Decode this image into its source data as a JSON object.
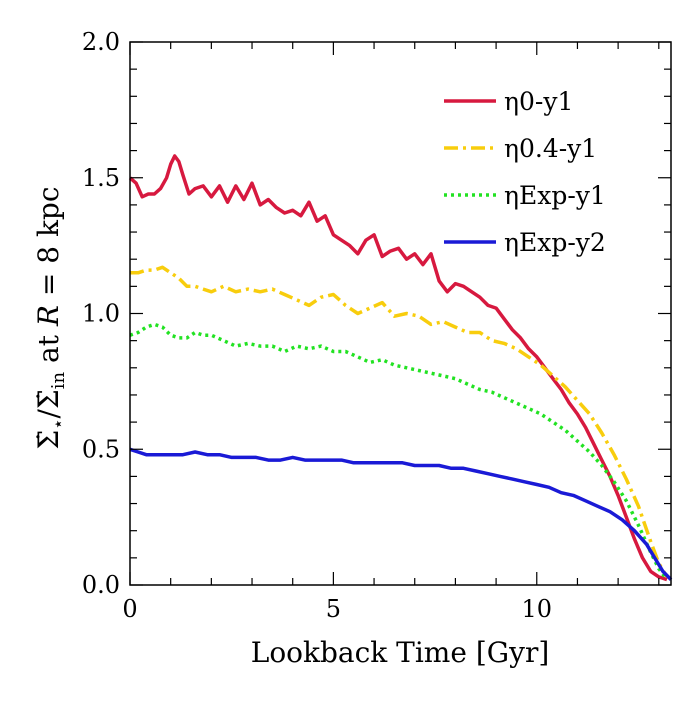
{
  "chart_data": {
    "type": "line",
    "title": "",
    "xlabel": "Lookback Time [Gyr]",
    "ylabel": "Σ̇⋆/Σ̇in at R = 8 kpc",
    "ylabel_parts": {
      "main": "Σ̇",
      "star_sub": "⋆",
      "slash": "/Σ̇",
      "in_sub": "in",
      "at_text": " at ",
      "r_var": "R",
      "rest": " = 8 kpc"
    },
    "xlim": [
      0,
      13.3
    ],
    "ylim": [
      0,
      2.0
    ],
    "xticks": [
      0,
      5,
      10
    ],
    "xtick_labels": [
      "0",
      "5",
      "10"
    ],
    "yticks": [
      0,
      0.5,
      1.0,
      1.5,
      2.0
    ],
    "ytick_labels": [
      "0.0",
      "0.5",
      "1.0",
      "1.5",
      "2.0"
    ],
    "x_minor_step": 1,
    "y_minor_step": 0.1,
    "grid": false,
    "legend_position": "top-right",
    "series": [
      {
        "name": "η0-y1",
        "color": "#d7193f",
        "dash": "solid",
        "x": [
          0,
          0.15,
          0.3,
          0.45,
          0.6,
          0.75,
          0.9,
          1.0,
          1.1,
          1.2,
          1.3,
          1.45,
          1.6,
          1.8,
          2.0,
          2.2,
          2.4,
          2.6,
          2.8,
          3.0,
          3.2,
          3.4,
          3.6,
          3.8,
          4.0,
          4.2,
          4.4,
          4.6,
          4.8,
          5.0,
          5.2,
          5.4,
          5.6,
          5.8,
          6.0,
          6.2,
          6.4,
          6.6,
          6.8,
          7.0,
          7.2,
          7.4,
          7.6,
          7.8,
          8.0,
          8.2,
          8.4,
          8.6,
          8.8,
          9.0,
          9.2,
          9.4,
          9.6,
          9.8,
          10.0,
          10.2,
          10.4,
          10.6,
          10.8,
          11.0,
          11.2,
          11.4,
          11.6,
          11.8,
          12.0,
          12.2,
          12.4,
          12.6,
          12.8,
          13.0,
          13.2
        ],
        "y": [
          1.5,
          1.48,
          1.43,
          1.44,
          1.44,
          1.46,
          1.5,
          1.55,
          1.58,
          1.56,
          1.51,
          1.44,
          1.46,
          1.47,
          1.43,
          1.47,
          1.41,
          1.47,
          1.42,
          1.48,
          1.4,
          1.42,
          1.39,
          1.37,
          1.38,
          1.36,
          1.41,
          1.34,
          1.36,
          1.29,
          1.27,
          1.25,
          1.22,
          1.27,
          1.29,
          1.21,
          1.23,
          1.24,
          1.2,
          1.22,
          1.18,
          1.22,
          1.12,
          1.08,
          1.11,
          1.1,
          1.08,
          1.06,
          1.03,
          1.02,
          0.98,
          0.94,
          0.91,
          0.87,
          0.84,
          0.8,
          0.76,
          0.72,
          0.67,
          0.63,
          0.58,
          0.52,
          0.46,
          0.4,
          0.33,
          0.25,
          0.17,
          0.1,
          0.05,
          0.03,
          0.02
        ]
      },
      {
        "name": "η0.4-y1",
        "color": "#f8cd0d",
        "dash": "dashdot",
        "x": [
          0,
          0.2,
          0.4,
          0.6,
          0.8,
          1.0,
          1.2,
          1.4,
          1.6,
          1.8,
          2.0,
          2.3,
          2.6,
          2.9,
          3.2,
          3.5,
          3.8,
          4.1,
          4.4,
          4.7,
          5.0,
          5.3,
          5.6,
          5.9,
          6.2,
          6.5,
          6.8,
          7.1,
          7.4,
          7.7,
          8.0,
          8.3,
          8.6,
          8.9,
          9.2,
          9.5,
          9.8,
          10.1,
          10.4,
          10.7,
          11.0,
          11.3,
          11.6,
          11.9,
          12.2,
          12.5,
          12.8,
          13.0,
          13.2
        ],
        "y": [
          1.15,
          1.15,
          1.16,
          1.16,
          1.17,
          1.15,
          1.13,
          1.1,
          1.1,
          1.09,
          1.08,
          1.1,
          1.08,
          1.09,
          1.08,
          1.09,
          1.07,
          1.05,
          1.03,
          1.06,
          1.07,
          1.03,
          1.0,
          1.02,
          1.04,
          0.99,
          1.0,
          0.99,
          0.96,
          0.97,
          0.95,
          0.93,
          0.93,
          0.9,
          0.89,
          0.87,
          0.84,
          0.81,
          0.77,
          0.73,
          0.68,
          0.63,
          0.56,
          0.48,
          0.39,
          0.29,
          0.16,
          0.08,
          0.03
        ]
      },
      {
        "name": "ηExp-y1",
        "color": "#22e222",
        "dash": "dotted",
        "x": [
          0,
          0.2,
          0.4,
          0.6,
          0.8,
          1.0,
          1.2,
          1.4,
          1.6,
          1.8,
          2.0,
          2.3,
          2.6,
          2.9,
          3.2,
          3.5,
          3.8,
          4.1,
          4.4,
          4.7,
          5.0,
          5.3,
          5.6,
          5.9,
          6.2,
          6.5,
          6.8,
          7.1,
          7.4,
          7.7,
          8.0,
          8.3,
          8.6,
          8.9,
          9.2,
          9.5,
          9.8,
          10.1,
          10.4,
          10.7,
          11.0,
          11.3,
          11.6,
          11.9,
          12.2,
          12.5,
          12.8,
          13.0,
          13.2
        ],
        "y": [
          0.92,
          0.93,
          0.95,
          0.96,
          0.95,
          0.92,
          0.91,
          0.91,
          0.93,
          0.92,
          0.92,
          0.9,
          0.88,
          0.89,
          0.88,
          0.88,
          0.86,
          0.88,
          0.87,
          0.88,
          0.86,
          0.86,
          0.84,
          0.82,
          0.83,
          0.81,
          0.8,
          0.79,
          0.78,
          0.77,
          0.76,
          0.74,
          0.72,
          0.71,
          0.69,
          0.67,
          0.65,
          0.63,
          0.6,
          0.57,
          0.53,
          0.49,
          0.44,
          0.38,
          0.31,
          0.22,
          0.12,
          0.06,
          0.02
        ]
      },
      {
        "name": "ηExp-y2",
        "color": "#1a1ad6",
        "dash": "solid",
        "x": [
          0,
          0.2,
          0.4,
          0.6,
          0.8,
          1.0,
          1.3,
          1.6,
          1.9,
          2.2,
          2.5,
          2.8,
          3.1,
          3.4,
          3.7,
          4.0,
          4.3,
          4.6,
          4.9,
          5.2,
          5.5,
          5.8,
          6.1,
          6.4,
          6.7,
          7.0,
          7.3,
          7.6,
          7.9,
          8.2,
          8.5,
          8.8,
          9.1,
          9.4,
          9.7,
          10.0,
          10.3,
          10.6,
          10.9,
          11.2,
          11.5,
          11.8,
          12.1,
          12.4,
          12.7,
          12.9,
          13.1,
          13.3
        ],
        "y": [
          0.5,
          0.49,
          0.48,
          0.48,
          0.48,
          0.48,
          0.48,
          0.49,
          0.48,
          0.48,
          0.47,
          0.47,
          0.47,
          0.46,
          0.46,
          0.47,
          0.46,
          0.46,
          0.46,
          0.46,
          0.45,
          0.45,
          0.45,
          0.45,
          0.45,
          0.44,
          0.44,
          0.44,
          0.43,
          0.43,
          0.42,
          0.41,
          0.4,
          0.39,
          0.38,
          0.37,
          0.36,
          0.34,
          0.33,
          0.31,
          0.29,
          0.27,
          0.24,
          0.2,
          0.15,
          0.1,
          0.05,
          0.02
        ]
      }
    ]
  }
}
